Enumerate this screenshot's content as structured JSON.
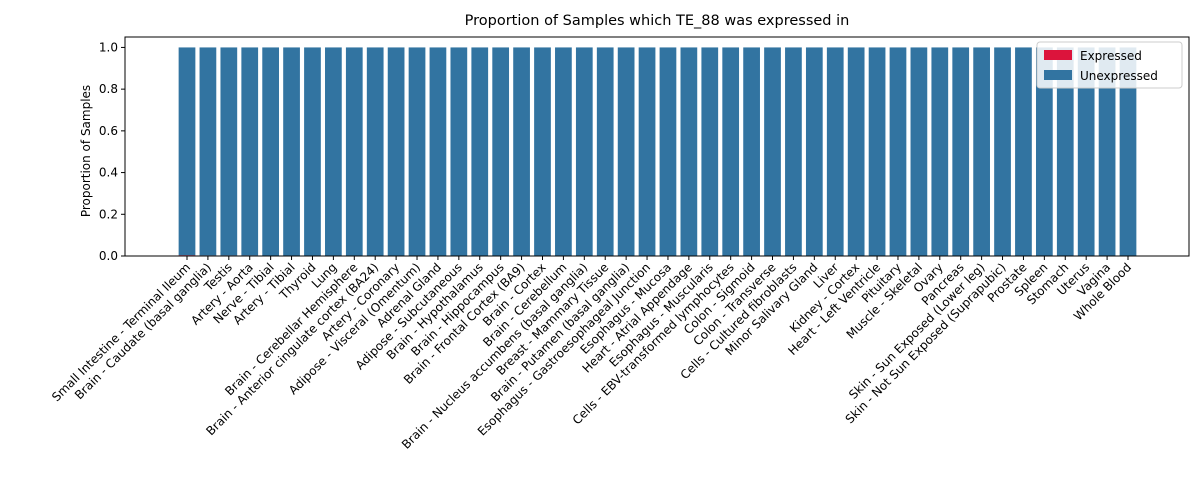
{
  "chart_data": {
    "type": "bar",
    "stacked": true,
    "title": "Proportion of Samples which TE_88 was expressed in",
    "xlabel": "",
    "ylabel": "Proportion of Samples",
    "ylim": [
      0,
      1.05
    ],
    "yticks": [
      "0.0",
      "0.2",
      "0.4",
      "0.6",
      "0.8",
      "1.0"
    ],
    "ytick_values": [
      0,
      0.2,
      0.4,
      0.6,
      0.8,
      1.0
    ],
    "grid": false,
    "legend_position": "top-right",
    "categories": [
      "Small Intestine - Terminal Ileum",
      "Brain - Caudate (basal ganglia)",
      "Testis",
      "Artery - Aorta",
      "Nerve - Tibial",
      "Artery - Tibial",
      "Thyroid",
      "Lung",
      "Brain - Cerebellar Hemisphere",
      "Brain - Anterior cingulate cortex (BA24)",
      "Artery - Coronary",
      "Adipose - Visceral (Omentum)",
      "Adrenal Gland",
      "Adipose - Subcutaneous",
      "Brain - Hypothalamus",
      "Brain - Hippocampus",
      "Brain - Frontal Cortex (BA9)",
      "Brain - Cortex",
      "Brain - Cerebellum",
      "Brain - Nucleus accumbens (basal ganglia)",
      "Breast - Mammary Tissue",
      "Brain - Putamen (basal ganglia)",
      "Esophagus - Gastroesophageal Junction",
      "Esophagus - Mucosa",
      "Heart - Atrial Appendage",
      "Esophagus - Muscularis",
      "Cells - EBV-transformed lymphocytes",
      "Colon - Sigmoid",
      "Colon - Transverse",
      "Cells - Cultured fibroblasts",
      "Minor Salivary Gland",
      "Liver",
      "Kidney - Cortex",
      "Heart - Left Ventricle",
      "Pituitary",
      "Muscle - Skeletal",
      "Ovary",
      "Pancreas",
      "Skin - Sun Exposed (Lower leg)",
      "Skin - Not Sun Exposed (Suprapubic)",
      "Prostate",
      "Spleen",
      "Stomach",
      "Uterus",
      "Vagina",
      "Whole Blood"
    ],
    "series": [
      {
        "name": "Expressed",
        "color": "#dc143c",
        "values": [
          0.004,
          0.003,
          0.003,
          0.003,
          0,
          0,
          0,
          0,
          0,
          0,
          0,
          0,
          0,
          0,
          0,
          0,
          0,
          0,
          0,
          0,
          0,
          0,
          0,
          0,
          0,
          0,
          0,
          0,
          0,
          0,
          0,
          0,
          0,
          0,
          0,
          0,
          0,
          0,
          0,
          0,
          0,
          0,
          0,
          0,
          0,
          0
        ]
      },
      {
        "name": "Unexpressed",
        "color": "#3274a1",
        "values": [
          0.996,
          0.997,
          0.997,
          0.997,
          1,
          1,
          1,
          1,
          1,
          1,
          1,
          1,
          1,
          1,
          1,
          1,
          1,
          1,
          1,
          1,
          1,
          1,
          1,
          1,
          1,
          1,
          1,
          1,
          1,
          1,
          1,
          1,
          1,
          1,
          1,
          1,
          1,
          1,
          1,
          1,
          1,
          1,
          1,
          1,
          1,
          1
        ]
      }
    ]
  }
}
